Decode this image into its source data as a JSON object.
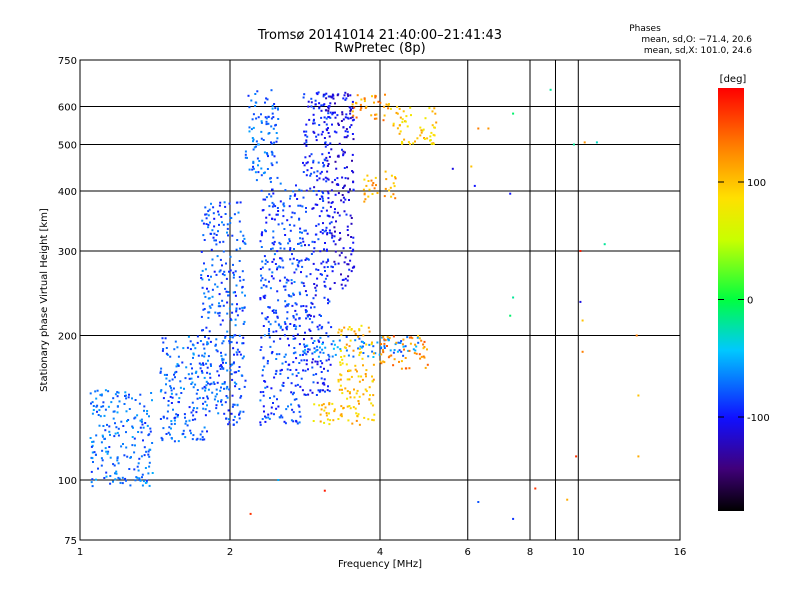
{
  "chart_data": {
    "type": "scatter",
    "title": "Tromsø 20141014 21:40:00–21:41:43",
    "subtitle": "RwPretec (8p)",
    "xlabel": "Frequency [MHz]",
    "ylabel": "Stationary phase Virtual Height [km]",
    "x_scale": "log",
    "y_scale": "log",
    "xlim": [
      1,
      16
    ],
    "ylim": [
      75,
      750
    ],
    "x_ticks": [
      1,
      2,
      4,
      6,
      8,
      10,
      16
    ],
    "x_minor": [
      9
    ],
    "y_ticks": [
      75,
      100,
      200,
      300,
      400,
      500,
      600,
      750
    ],
    "grid": true,
    "legend": {
      "header": "Phases",
      "line_o": "mean, sd,O: −71.4, 20.6",
      "line_x": "mean, sd,X: 101.0, 24.6",
      "placement": "top-right"
    },
    "colorbar": {
      "label": "[deg]",
      "range": [
        -180,
        180
      ],
      "ticks": [
        100,
        0,
        -100
      ],
      "colormap": "rainbow"
    },
    "series": [
      {
        "mode": "O",
        "phase_mean": -71.4,
        "phase_sd": 20.6,
        "clusters": [
          {
            "f": [
              2.15,
              2.5
            ],
            "h": [
              420,
              650
            ],
            "phase": -75
          },
          {
            "f": [
              2.3,
              2.8
            ],
            "h": [
              130,
              420
            ],
            "phase": -85
          },
          {
            "f": [
              2.8,
              3.2
            ],
            "h": [
              150,
              650
            ],
            "phase": -95
          },
          {
            "f": [
              3.1,
              3.55
            ],
            "h": [
              250,
              650
            ],
            "phase": -110
          },
          {
            "f": [
              1.75,
              2.15
            ],
            "h": [
              130,
              380
            ],
            "phase": -80
          },
          {
            "f": [
              1.45,
              1.8
            ],
            "h": [
              120,
              200
            ],
            "phase": -75
          },
          {
            "f": [
              1.05,
              1.4
            ],
            "h": [
              97,
              155
            ],
            "phase": -72
          },
          {
            "f": [
              2.8,
              4.8
            ],
            "h": [
              180,
              200
            ],
            "phase": -65
          }
        ]
      },
      {
        "mode": "X",
        "phase_mean": 101.0,
        "phase_sd": 24.6,
        "clusters": [
          {
            "f": [
              3.5,
              4.2
            ],
            "h": [
              560,
              640
            ],
            "phase": 120
          },
          {
            "f": [
              3.7,
              4.3
            ],
            "h": [
              380,
              440
            ],
            "phase": 110
          },
          {
            "f": [
              3.3,
              3.9
            ],
            "h": [
              130,
              210
            ],
            "phase": 100
          },
          {
            "f": [
              2.9,
              3.4
            ],
            "h": [
              130,
              145
            ],
            "phase": 95
          },
          {
            "f": [
              4.0,
              5.0
            ],
            "h": [
              170,
              200
            ],
            "phase": 125
          },
          {
            "f": [
              4.2,
              5.2
            ],
            "h": [
              500,
              600
            ],
            "phase": 95
          }
        ]
      },
      {
        "mode": "sparse",
        "points": [
          {
            "f": 6.3,
            "h": 540,
            "phase": 130
          },
          {
            "f": 6.6,
            "h": 540,
            "phase": 120
          },
          {
            "f": 7.4,
            "h": 580,
            "phase": -10
          },
          {
            "f": 7.3,
            "h": 395,
            "phase": -100
          },
          {
            "f": 8.8,
            "h": 650,
            "phase": -20
          },
          {
            "f": 9.8,
            "h": 500,
            "phase": -20
          },
          {
            "f": 10.3,
            "h": 505,
            "phase": 120
          },
          {
            "f": 10.9,
            "h": 505,
            "phase": -30
          },
          {
            "f": 11.3,
            "h": 310,
            "phase": -20
          },
          {
            "f": 10.1,
            "h": 300,
            "phase": 170
          },
          {
            "f": 10.1,
            "h": 235,
            "phase": -110
          },
          {
            "f": 10.2,
            "h": 215,
            "phase": 100
          },
          {
            "f": 10.2,
            "h": 185,
            "phase": 130
          },
          {
            "f": 13.1,
            "h": 200,
            "phase": 130
          },
          {
            "f": 13.2,
            "h": 150,
            "phase": 100
          },
          {
            "f": 9.9,
            "h": 112,
            "phase": 160
          },
          {
            "f": 13.2,
            "h": 112,
            "phase": 110
          },
          {
            "f": 9.5,
            "h": 91,
            "phase": 110
          },
          {
            "f": 8.2,
            "h": 96,
            "phase": 160
          },
          {
            "f": 6.3,
            "h": 90,
            "phase": -80
          },
          {
            "f": 7.4,
            "h": 83,
            "phase": -90
          },
          {
            "f": 7.3,
            "h": 220,
            "phase": -10
          },
          {
            "f": 7.4,
            "h": 240,
            "phase": -20
          },
          {
            "f": 5.6,
            "h": 445,
            "phase": -110
          },
          {
            "f": 6.1,
            "h": 450,
            "phase": 100
          },
          {
            "f": 6.2,
            "h": 410,
            "phase": -100
          },
          {
            "f": 3.1,
            "h": 95,
            "phase": 170
          },
          {
            "f": 2.5,
            "h": 100,
            "phase": -50
          },
          {
            "f": 2.2,
            "h": 85,
            "phase": 160
          }
        ]
      }
    ]
  }
}
